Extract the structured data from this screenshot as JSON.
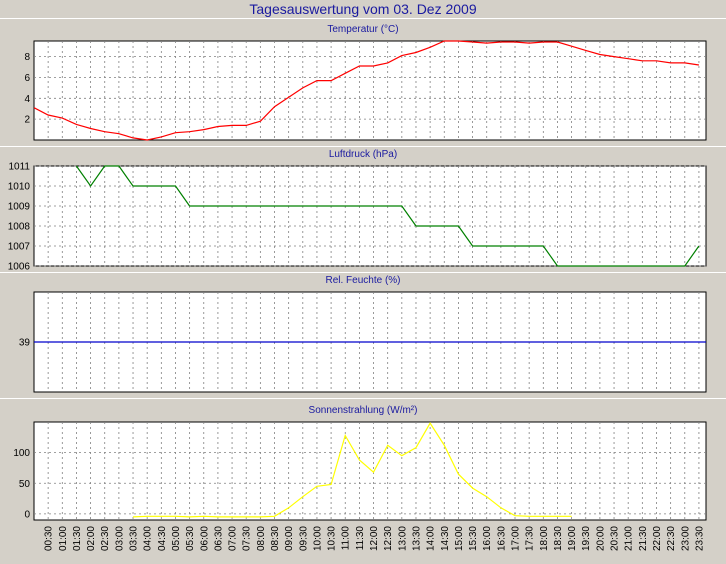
{
  "window": {
    "title": "Tagesauswertung vom 03. Dez 2009"
  },
  "colors": {
    "background": "#d4d0c8",
    "plot_background": "#ffffff",
    "grid": "#808080",
    "title_text": "#1a1aa0"
  },
  "x_ticks": [
    "00:30",
    "01:00",
    "01:30",
    "02:00",
    "02:30",
    "03:00",
    "03:30",
    "04:00",
    "04:30",
    "05:00",
    "05:30",
    "06:00",
    "06:30",
    "07:00",
    "07:30",
    "08:00",
    "08:30",
    "09:00",
    "09:30",
    "10:00",
    "10:30",
    "11:00",
    "11:30",
    "12:00",
    "12:30",
    "13:00",
    "13:30",
    "14:00",
    "14:30",
    "15:00",
    "15:30",
    "16:00",
    "16:30",
    "17:00",
    "17:30",
    "18:00",
    "18:30",
    "19:00",
    "19:30",
    "20:00",
    "20:30",
    "21:00",
    "21:30",
    "22:00",
    "22:30",
    "23:00",
    "23:30"
  ],
  "chart_data": [
    {
      "type": "line",
      "title": "Temperatur (°C)",
      "ylim": [
        0,
        9.5
      ],
      "yticks": [
        2,
        4,
        6,
        8
      ],
      "grid": true,
      "color": "#ff0000",
      "series": [
        {
          "x": [
            0,
            0.5,
            1,
            1.5,
            2,
            2.5,
            3,
            3.5,
            4,
            4.5,
            5,
            5.5,
            6,
            6.5,
            7,
            7.5,
            8,
            8.5,
            9,
            9.5,
            10,
            10.5,
            11,
            11.5,
            12,
            12.5,
            13,
            13.5,
            14,
            14.5,
            15,
            15.5,
            16,
            16.5,
            17,
            17.5,
            18,
            18.5,
            19,
            19.5,
            20,
            20.5,
            21,
            21.5,
            22,
            22.5,
            23,
            23.5
          ],
          "values": [
            3.1,
            2.4,
            2.1,
            1.5,
            1.1,
            0.8,
            0.6,
            0.2,
            0.0,
            0.3,
            0.7,
            0.8,
            1.0,
            1.3,
            1.4,
            1.4,
            1.8,
            3.2,
            4.1,
            5.0,
            5.7,
            5.7,
            6.4,
            7.1,
            7.1,
            7.4,
            8.1,
            8.4,
            8.9,
            9.5,
            9.5,
            9.4,
            9.3,
            9.4,
            9.4,
            9.3,
            9.4,
            9.4,
            9.0,
            8.6,
            8.2,
            8.0,
            7.8,
            7.6,
            7.6,
            7.4,
            7.4,
            7.2
          ]
        }
      ]
    },
    {
      "type": "line",
      "title": "Luftdruck (hPa)",
      "ylim": [
        1006,
        1011
      ],
      "yticks": [
        1006,
        1007,
        1008,
        1009,
        1010,
        1011
      ],
      "grid": true,
      "color": "#008000",
      "series": [
        {
          "x": [
            1.5,
            2,
            2.5,
            3,
            3.5,
            4,
            4.5,
            5,
            5.5,
            6,
            6.5,
            7,
            7.5,
            8,
            8.5,
            9,
            9.5,
            10,
            10.5,
            11,
            11.5,
            12,
            12.5,
            13,
            13.5,
            14,
            14.5,
            15,
            15.5,
            16,
            16.5,
            17,
            17.5,
            18,
            18.5,
            19,
            19.5,
            20,
            20.5,
            21,
            21.5,
            22,
            22.5,
            23,
            23.5
          ],
          "values": [
            1011,
            1010,
            1011,
            1011,
            1010,
            1010,
            1010,
            1010,
            1009,
            1009,
            1009,
            1009,
            1009,
            1009,
            1009,
            1009,
            1009,
            1009,
            1009,
            1009,
            1009,
            1009,
            1009,
            1009,
            1008,
            1008,
            1008,
            1008,
            1007,
            1007,
            1007,
            1007,
            1007,
            1007,
            1006,
            1006,
            1006,
            1006,
            1006,
            1006,
            1006,
            1006,
            1006,
            1006,
            1007
          ]
        }
      ]
    },
    {
      "type": "line",
      "title": "Rel. Feuchte (%)",
      "ylim": [
        35,
        43
      ],
      "yticks": [
        39
      ],
      "grid": true,
      "color": "#0000cc",
      "series": [
        {
          "x": [
            0,
            23.75
          ],
          "values": [
            39,
            39
          ]
        }
      ]
    },
    {
      "type": "line",
      "title": "Sonnenstrahlung (W/m²)",
      "ylim": [
        -10,
        150
      ],
      "yticks": [
        0,
        50,
        100
      ],
      "grid": true,
      "color": "#ffff00",
      "series": [
        {
          "x": [
            3.5,
            4,
            4.5,
            5,
            5.5,
            6,
            6.5,
            7,
            7.5,
            8,
            8.5,
            9,
            9.5,
            10,
            10.5,
            11,
            11.5,
            12,
            12.5,
            13,
            13.5,
            14,
            14.5,
            15,
            15.5,
            16,
            16.5,
            17,
            17.5,
            18,
            18.5,
            19
          ],
          "values": [
            -5,
            -4,
            -4,
            -4,
            -5,
            -4,
            -5,
            -5,
            -5,
            -5,
            -4,
            10,
            28,
            45,
            48,
            128,
            88,
            68,
            112,
            95,
            108,
            148,
            112,
            65,
            42,
            28,
            10,
            -3,
            -4,
            -4,
            -4,
            -4
          ]
        }
      ]
    }
  ]
}
